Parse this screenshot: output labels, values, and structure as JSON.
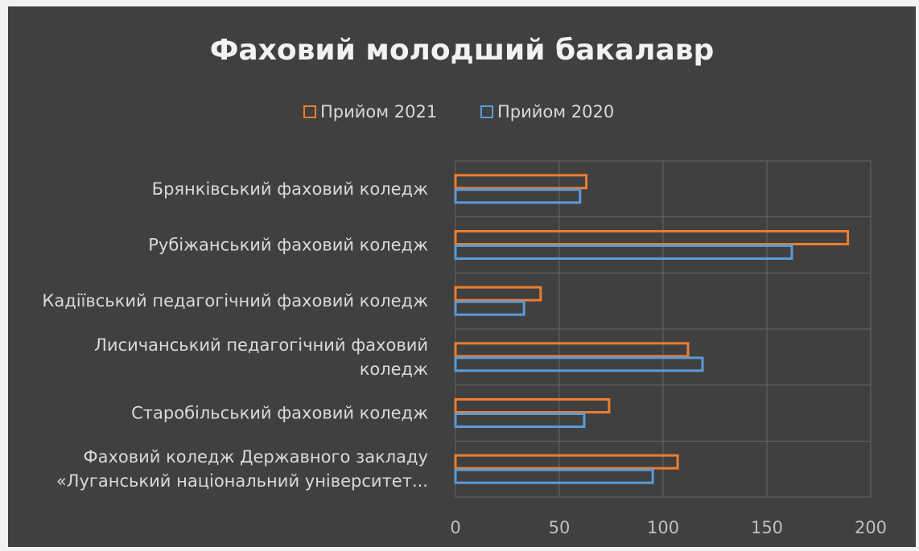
{
  "chart_data": {
    "type": "bar",
    "orientation": "horizontal",
    "title": "Фаховий молодший бакалавр",
    "categories": [
      [
        "Брянківський фаховий коледж"
      ],
      [
        "Рубіжанський фаховий коледж"
      ],
      [
        "Кадіївський педагогічний фаховий коледж"
      ],
      [
        "Лисичанський педагогічний фаховий",
        "коледж"
      ],
      [
        "Старобільський фаховий коледж"
      ],
      [
        "Фаховий коледж Державного закладу",
        "«Луганський національний університет..."
      ]
    ],
    "series": [
      {
        "name": "Прийом 2021",
        "color": "#ed7d31",
        "values": [
          63,
          189,
          41,
          112,
          74,
          107
        ]
      },
      {
        "name": "Прийом 2020",
        "color": "#5b9bd5",
        "values": [
          60,
          162,
          33,
          119,
          62,
          95
        ]
      }
    ],
    "xlim": [
      0,
      200
    ],
    "xticks": [
      0,
      50,
      100,
      150,
      200
    ],
    "grid": true,
    "legend": "top-center"
  }
}
